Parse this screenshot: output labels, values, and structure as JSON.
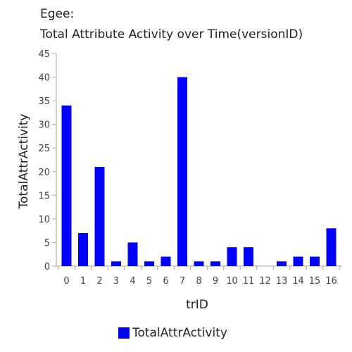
{
  "title": {
    "line1": "Egee:",
    "line2": "Total Attribute Activity over Time(versionID)"
  },
  "legend": {
    "label": "TotalAttrActivity",
    "color": "#0000ff"
  },
  "chart_data": {
    "type": "bar",
    "title": "Egee: Total Attribute Activity over Time(versionID)",
    "xlabel": "trID",
    "ylabel": "TotalAttrActivity",
    "categories": [
      "0",
      "1",
      "2",
      "3",
      "4",
      "5",
      "6",
      "7",
      "8",
      "9",
      "10",
      "11",
      "12",
      "13",
      "14",
      "15",
      "16"
    ],
    "series": [
      {
        "name": "TotalAttrActivity",
        "color": "#0000ff",
        "values": [
          34,
          7,
          21,
          1,
          5,
          1,
          2,
          40,
          1,
          1,
          4,
          4,
          0,
          1,
          2,
          2,
          8
        ]
      }
    ],
    "ylim": [
      0,
      45
    ],
    "yticks": [
      0,
      5,
      10,
      15,
      20,
      25,
      30,
      35,
      40,
      45
    ],
    "grid": false,
    "legend_position": "bottom"
  }
}
